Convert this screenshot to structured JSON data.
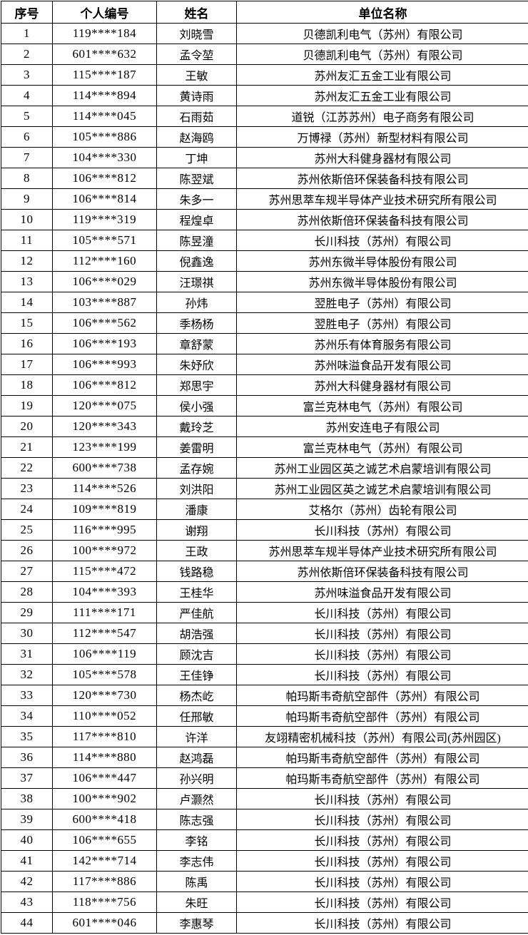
{
  "colors": {
    "background": "#ffffff",
    "border": "#000000",
    "text": "#000000"
  },
  "table": {
    "columns": [
      {
        "key": "serial",
        "label": "序号"
      },
      {
        "key": "personal_id",
        "label": "个人编号"
      },
      {
        "key": "name",
        "label": "姓名"
      },
      {
        "key": "company",
        "label": "单位名称"
      }
    ],
    "rows": [
      {
        "serial": "1",
        "personal_id": "119****184",
        "name": "刘晓雪",
        "company": "贝德凯利电气（苏州）有限公司"
      },
      {
        "serial": "2",
        "personal_id": "601****632",
        "name": "孟令堃",
        "company": "贝德凯利电气（苏州）有限公司"
      },
      {
        "serial": "3",
        "personal_id": "115****187",
        "name": "王敏",
        "company": "苏州友汇五金工业有限公司"
      },
      {
        "serial": "4",
        "personal_id": "114****894",
        "name": "黄诗雨",
        "company": "苏州友汇五金工业有限公司"
      },
      {
        "serial": "5",
        "personal_id": "114****045",
        "name": "石雨茹",
        "company": "道锐（江苏苏州）电子商务有限公司"
      },
      {
        "serial": "6",
        "personal_id": "105****886",
        "name": "赵海鸥",
        "company": "万博禄（苏州）新型材料有限公司"
      },
      {
        "serial": "7",
        "personal_id": "104****330",
        "name": "丁坤",
        "company": "苏州大科健身器材有限公司"
      },
      {
        "serial": "8",
        "personal_id": "106****812",
        "name": "陈翌斌",
        "company": "苏州依斯倍环保装备科技有限公司"
      },
      {
        "serial": "9",
        "personal_id": "106****814",
        "name": "朱多一",
        "company": "苏州思萃车规半导体产业技术研究所有限公司"
      },
      {
        "serial": "10",
        "personal_id": "119****319",
        "name": "程煌卓",
        "company": "苏州依斯倍环保装备科技有限公司"
      },
      {
        "serial": "11",
        "personal_id": "105****571",
        "name": "陈昱潼",
        "company": "长川科技（苏州）有限公司"
      },
      {
        "serial": "12",
        "personal_id": "112****160",
        "name": "倪鑫逸",
        "company": "苏州东微半导体股份有限公司"
      },
      {
        "serial": "13",
        "personal_id": "106****029",
        "name": "汪璟祺",
        "company": "苏州东微半导体股份有限公司"
      },
      {
        "serial": "14",
        "personal_id": "103****887",
        "name": "孙炜",
        "company": "翌胜电子（苏州）有限公司"
      },
      {
        "serial": "15",
        "personal_id": "106****562",
        "name": "季杨杨",
        "company": "翌胜电子（苏州）有限公司"
      },
      {
        "serial": "16",
        "personal_id": "106****193",
        "name": "章舒蒙",
        "company": "苏州乐有体育服务有限公司"
      },
      {
        "serial": "17",
        "personal_id": "106****993",
        "name": "朱妤欣",
        "company": "苏州味溢食品开发有限公司"
      },
      {
        "serial": "18",
        "personal_id": "106****812",
        "name": "郑思宇",
        "company": "苏州大科健身器材有限公司"
      },
      {
        "serial": "19",
        "personal_id": "120****075",
        "name": "侯小强",
        "company": "富兰克林电气（苏州）有限公司"
      },
      {
        "serial": "20",
        "personal_id": "120****343",
        "name": "戴玲芝",
        "company": "苏州安连电子有限公司"
      },
      {
        "serial": "21",
        "personal_id": "123****199",
        "name": "姜雷明",
        "company": "富兰克林电气（苏州）有限公司"
      },
      {
        "serial": "22",
        "personal_id": "600****738",
        "name": "孟存婉",
        "company": "苏州工业园区英之诚艺术启蒙培训有限公司"
      },
      {
        "serial": "23",
        "personal_id": "114****526",
        "name": "刘洪阳",
        "company": "苏州工业园区英之诚艺术启蒙培训有限公司"
      },
      {
        "serial": "24",
        "personal_id": "109****819",
        "name": "潘康",
        "company": "艾格尔（苏州）齿轮有限公司"
      },
      {
        "serial": "25",
        "personal_id": "116****995",
        "name": "谢翔",
        "company": "长川科技（苏州）有限公司"
      },
      {
        "serial": "26",
        "personal_id": "100****972",
        "name": "王政",
        "company": "苏州思萃车规半导体产业技术研究所有限公司"
      },
      {
        "serial": "27",
        "personal_id": "115****472",
        "name": "钱路稳",
        "company": "苏州依斯倍环保装备科技有限公司"
      },
      {
        "serial": "28",
        "personal_id": "104****393",
        "name": "王桂华",
        "company": "苏州味溢食品开发有限公司"
      },
      {
        "serial": "29",
        "personal_id": "111****171",
        "name": "严佳航",
        "company": "长川科技（苏州）有限公司"
      },
      {
        "serial": "30",
        "personal_id": "112****547",
        "name": "胡浩强",
        "company": "长川科技（苏州）有限公司"
      },
      {
        "serial": "31",
        "personal_id": "106****119",
        "name": "顾沈吉",
        "company": "长川科技（苏州）有限公司"
      },
      {
        "serial": "32",
        "personal_id": "105****578",
        "name": "王佳铮",
        "company": "长川科技（苏州）有限公司"
      },
      {
        "serial": "33",
        "personal_id": "120****730",
        "name": "杨杰屹",
        "company": "帕玛斯韦奇航空部件（苏州）有限公司"
      },
      {
        "serial": "34",
        "personal_id": "110****052",
        "name": "任邢敏",
        "company": "帕玛斯韦奇航空部件（苏州）有限公司"
      },
      {
        "serial": "35",
        "personal_id": "117****810",
        "name": "许洋",
        "company": "友翊精密机械科技（苏州）有限公司(苏州园区)"
      },
      {
        "serial": "36",
        "personal_id": "114****880",
        "name": "赵鸿磊",
        "company": "帕玛斯韦奇航空部件（苏州）有限公司"
      },
      {
        "serial": "37",
        "personal_id": "106****447",
        "name": "孙兴明",
        "company": "帕玛斯韦奇航空部件（苏州）有限公司"
      },
      {
        "serial": "38",
        "personal_id": "100****902",
        "name": "卢灏然",
        "company": "长川科技（苏州）有限公司"
      },
      {
        "serial": "39",
        "personal_id": "600****418",
        "name": "陈志强",
        "company": "长川科技（苏州）有限公司"
      },
      {
        "serial": "40",
        "personal_id": "106****655",
        "name": "李铭",
        "company": "长川科技（苏州）有限公司"
      },
      {
        "serial": "41",
        "personal_id": "142****714",
        "name": "李志伟",
        "company": "长川科技（苏州）有限公司"
      },
      {
        "serial": "42",
        "personal_id": "117****886",
        "name": "陈禹",
        "company": "长川科技（苏州）有限公司"
      },
      {
        "serial": "43",
        "personal_id": "118****756",
        "name": "朱旺",
        "company": "长川科技（苏州）有限公司"
      },
      {
        "serial": "44",
        "personal_id": "601****046",
        "name": "李惠琴",
        "company": "长川科技（苏州）有限公司"
      }
    ]
  }
}
